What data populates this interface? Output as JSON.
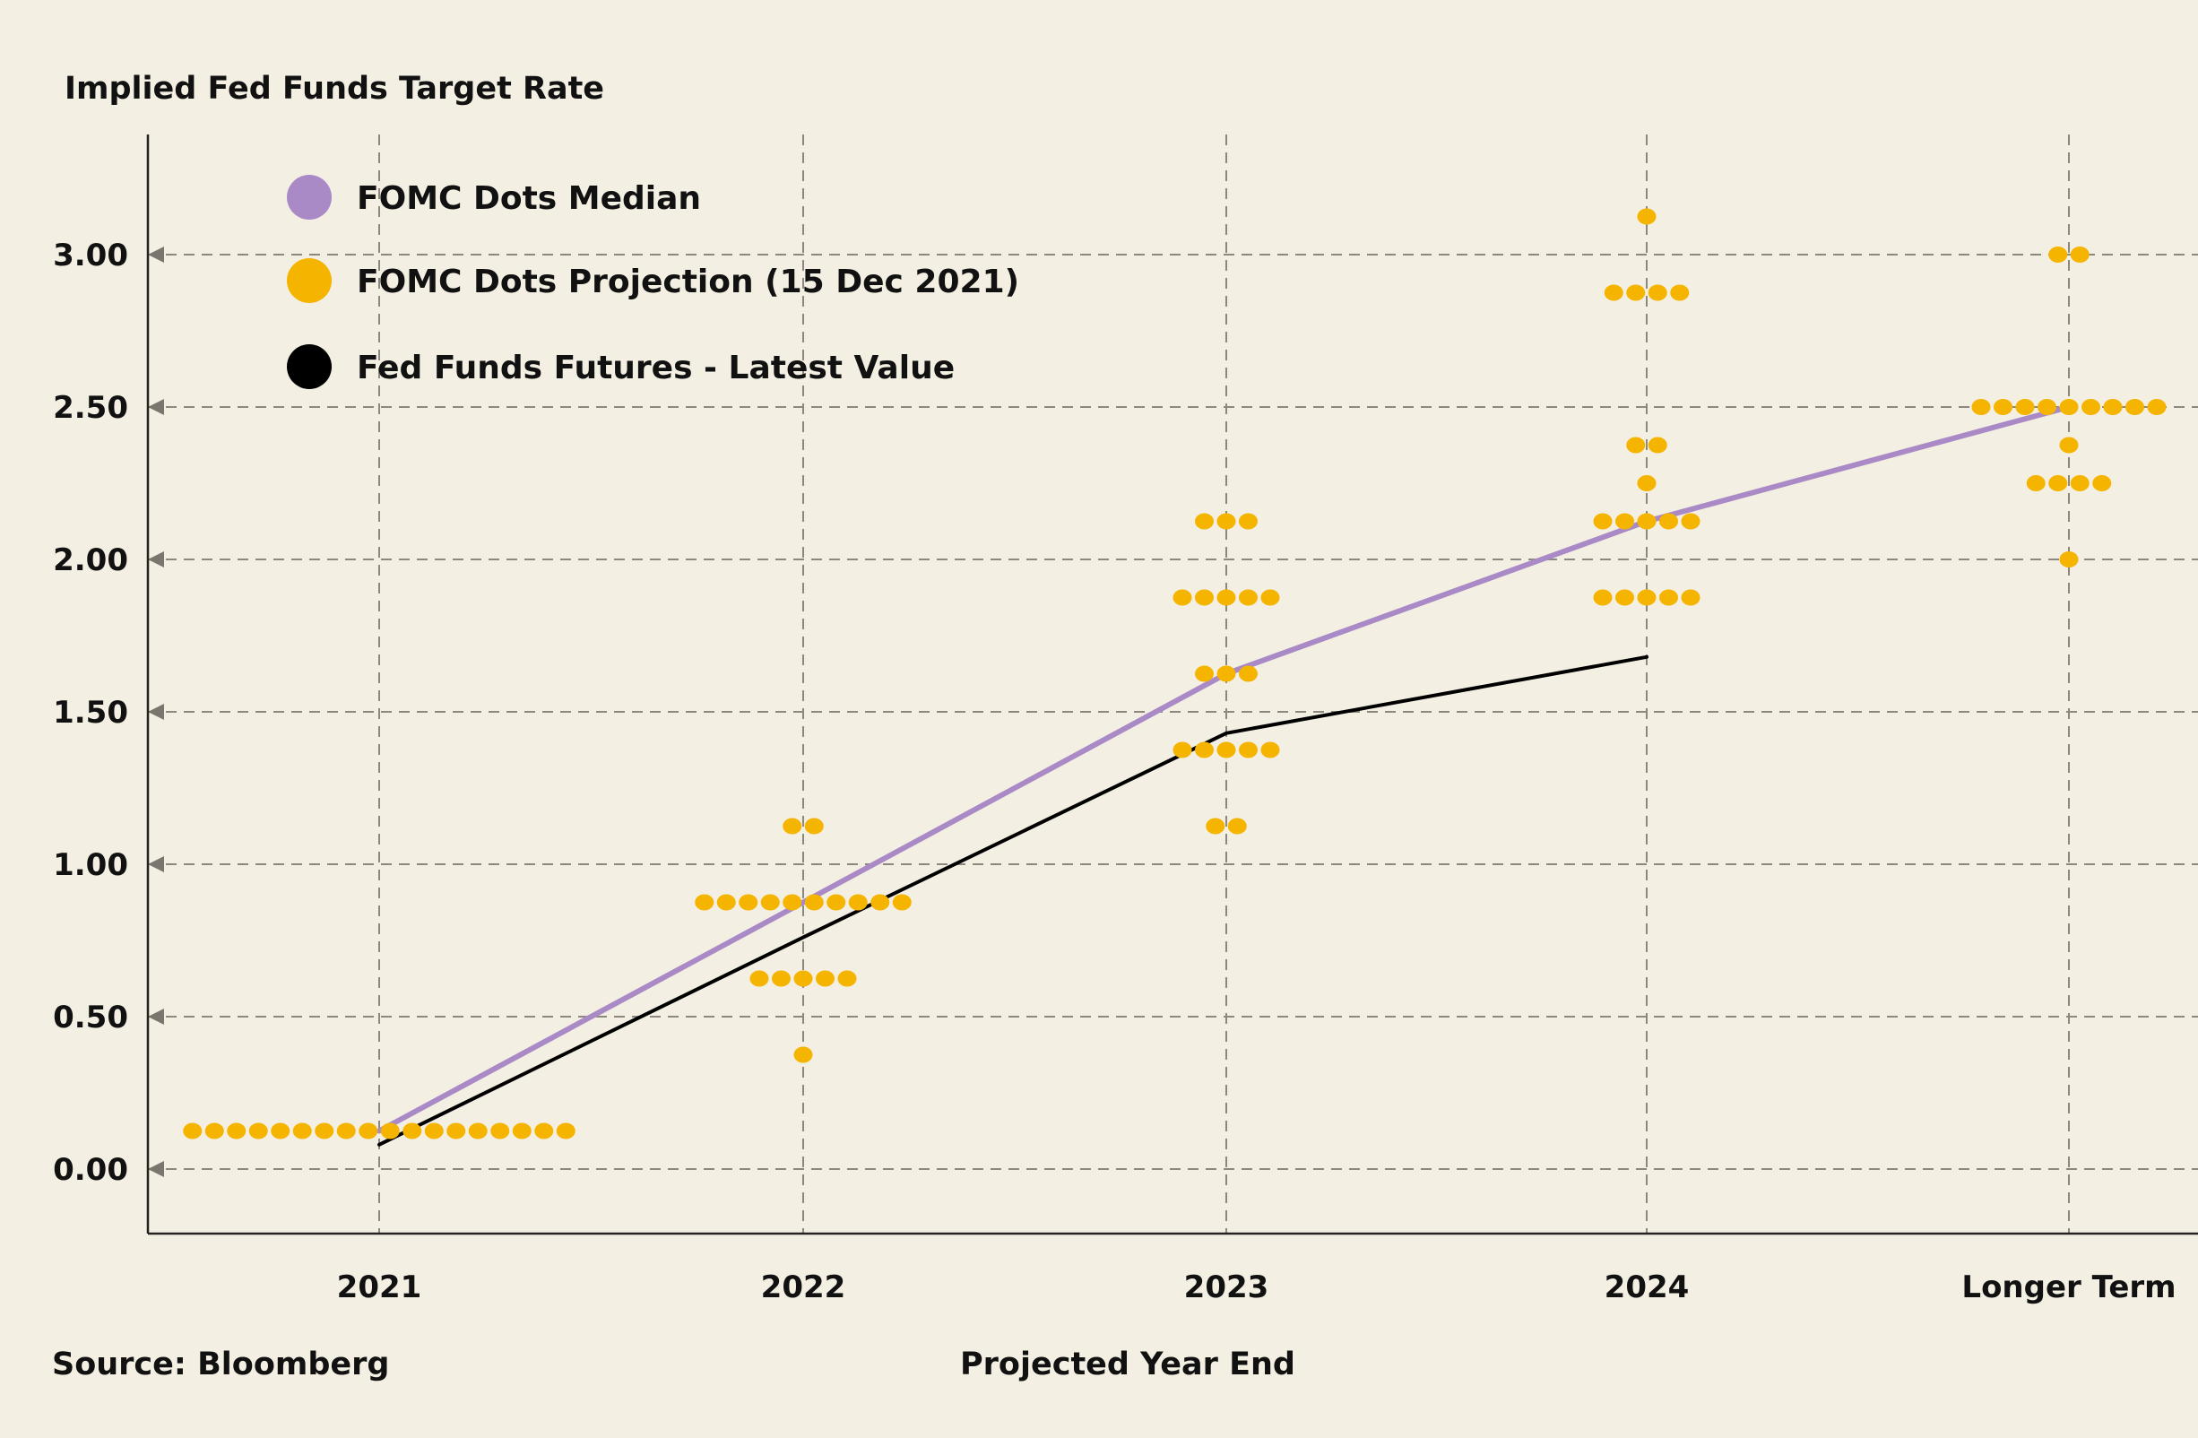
{
  "chart_data": {
    "type": "scatter",
    "title": "Implied Fed Funds Target Rate",
    "xlabel": "Projected Year End",
    "ylabel": "",
    "source": "Source: Bloomberg",
    "categories": [
      "2021",
      "2022",
      "2023",
      "2024",
      "Longer Term"
    ],
    "y_ticks": [
      "0.00",
      "0.50",
      "1.00",
      "1.50",
      "2.00",
      "2.50",
      "3.00"
    ],
    "y_tick_values": [
      0,
      0.5,
      1,
      1.5,
      2,
      2.5,
      3
    ],
    "ylim": [
      -0.2,
      3.4
    ],
    "grid": true,
    "legend_position": "top-left",
    "legend": [
      {
        "label": "FOMC Dots Median",
        "color": "#a98ac6"
      },
      {
        "label": "FOMC Dots Projection (15 Dec 2021)",
        "color": "#f4b400"
      },
      {
        "label": "Fed Funds Futures - Latest Value",
        "color": "#000000"
      }
    ],
    "series": [
      {
        "name": "FOMC Dots Median",
        "type": "line",
        "color": "#a98ac6",
        "points": [
          {
            "x": "2021",
            "y": 0.125
          },
          {
            "x": "2022",
            "y": 0.875
          },
          {
            "x": "2023",
            "y": 1.625
          },
          {
            "x": "2024",
            "y": 2.125
          },
          {
            "x": "Longer Term",
            "y": 2.5
          }
        ]
      },
      {
        "name": "Fed Funds Futures - Latest Value",
        "type": "line",
        "color": "#000000",
        "points": [
          {
            "x": "2021",
            "y": 0.08
          },
          {
            "x": "2022",
            "y": 0.76
          },
          {
            "x": "2023",
            "y": 1.43
          },
          {
            "x": "2024",
            "y": 1.68
          }
        ]
      },
      {
        "name": "FOMC Dots Projection (15 Dec 2021)",
        "type": "dot-count",
        "color": "#f4b400",
        "groups": [
          {
            "x": "2021",
            "levels": [
              {
                "y": 0.125,
                "count": 18
              }
            ]
          },
          {
            "x": "2022",
            "levels": [
              {
                "y": 1.125,
                "count": 2
              },
              {
                "y": 0.875,
                "count": 10
              },
              {
                "y": 0.625,
                "count": 5
              },
              {
                "y": 0.375,
                "count": 1
              }
            ]
          },
          {
            "x": "2023",
            "levels": [
              {
                "y": 2.125,
                "count": 3
              },
              {
                "y": 1.875,
                "count": 5
              },
              {
                "y": 1.625,
                "count": 3
              },
              {
                "y": 1.375,
                "count": 5
              },
              {
                "y": 1.125,
                "count": 2
              }
            ]
          },
          {
            "x": "2024",
            "levels": [
              {
                "y": 3.125,
                "count": 1
              },
              {
                "y": 2.875,
                "count": 4
              },
              {
                "y": 2.375,
                "count": 2
              },
              {
                "y": 2.25,
                "count": 1
              },
              {
                "y": 2.125,
                "count": 5
              },
              {
                "y": 1.875,
                "count": 5
              }
            ]
          },
          {
            "x": "Longer Term",
            "levels": [
              {
                "y": 3.0,
                "count": 2
              },
              {
                "y": 2.5,
                "count": 9
              },
              {
                "y": 2.375,
                "count": 1
              },
              {
                "y": 2.25,
                "count": 4
              },
              {
                "y": 2.0,
                "count": 1
              }
            ]
          }
        ]
      }
    ]
  }
}
